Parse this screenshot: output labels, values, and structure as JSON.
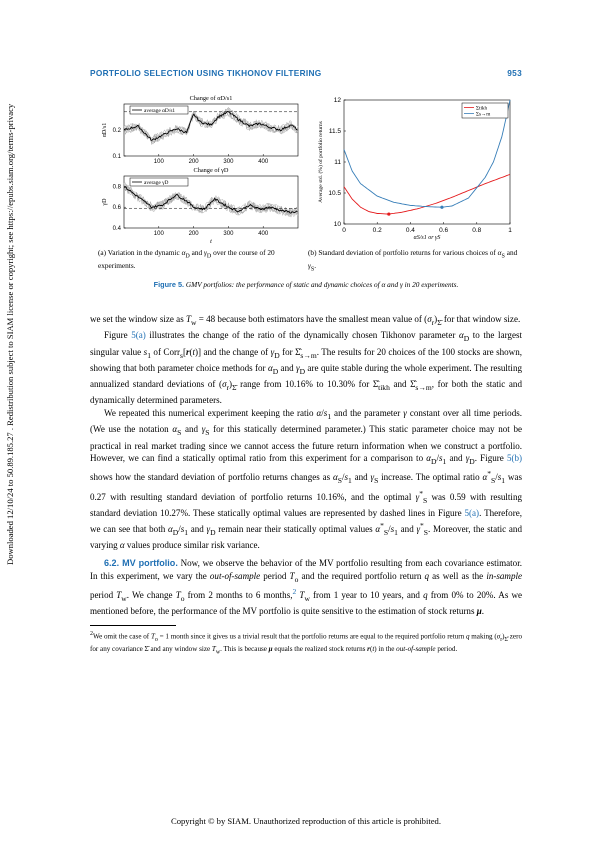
{
  "side_note": "Downloaded 12/10/24 to 50.89.185.27 . Redistribution subject to SIAM license or copyright; see https://epubs.siam.org/terms-privacy",
  "header": {
    "title": "PORTFOLIO SELECTION USING TIKHONOV FILTERING",
    "page": "953"
  },
  "figure": {
    "label": "Figure 5.",
    "caption": "GMV portfolios: the performance of static and dynamic choices of α and γ in 20 experiments.",
    "sub_a": "(a) Variation in the dynamic αD and γD over the course of 20 experiments.",
    "sub_b": "(b) Standard deviation of portfolio returns for various choices of αS and γS."
  },
  "chart_data": [
    {
      "type": "line",
      "title": "Change of αD/s1",
      "ylabel": "αD/s1",
      "xlabel": "",
      "legend": [
        "average αD/s1"
      ],
      "xlim": [
        0,
        500
      ],
      "ylim": [
        0.1,
        0.3
      ],
      "xticks": [
        "100",
        "200",
        "300",
        "400"
      ],
      "yticks": [
        "0.1",
        "0.2"
      ],
      "reference_line": 0.27,
      "series": [
        {
          "name": "average αD/s1",
          "x": [
            0,
            40,
            80,
            110,
            150,
            180,
            200,
            220,
            250,
            270,
            300,
            330,
            360,
            390,
            420,
            450,
            480,
            500
          ],
          "y": [
            0.2,
            0.215,
            0.16,
            0.18,
            0.205,
            0.19,
            0.26,
            0.23,
            0.22,
            0.25,
            0.27,
            0.24,
            0.215,
            0.225,
            0.21,
            0.2,
            0.22,
            0.2
          ]
        }
      ]
    },
    {
      "type": "line",
      "title": "Change of γD",
      "ylabel": "γD",
      "xlabel": "t",
      "legend": [
        "average γD"
      ],
      "xlim": [
        0,
        500
      ],
      "ylim": [
        0.4,
        0.9
      ],
      "xticks": [
        "100",
        "200",
        "300",
        "400"
      ],
      "yticks": [
        "0.4",
        "0.6",
        "0.8"
      ],
      "reference_line": 0.59,
      "series": [
        {
          "name": "average γD",
          "x": [
            0,
            40,
            80,
            110,
            150,
            180,
            200,
            230,
            260,
            300,
            330,
            360,
            390,
            420,
            450,
            480,
            500
          ],
          "y": [
            0.8,
            0.7,
            0.6,
            0.62,
            0.72,
            0.66,
            0.6,
            0.58,
            0.68,
            0.6,
            0.56,
            0.62,
            0.58,
            0.6,
            0.57,
            0.55,
            0.56
          ]
        }
      ]
    },
    {
      "type": "line",
      "title": "",
      "xlabel": "αS/s1 or γS",
      "ylabel": "Average std. (%) of portfolio returns",
      "xlim": [
        0,
        1
      ],
      "ylim": [
        10,
        12
      ],
      "xticks": [
        "0",
        "0.2",
        "0.4",
        "0.6",
        "0.8",
        "1"
      ],
      "yticks": [
        "10",
        "10.5",
        "11",
        "11.5",
        "12"
      ],
      "legend_position": "top-right",
      "series": [
        {
          "name": "Σtikh",
          "color": "#e41a1c",
          "x": [
            0,
            0.05,
            0.1,
            0.15,
            0.2,
            0.27,
            0.35,
            0.45,
            0.55,
            0.65,
            0.75,
            0.85,
            0.95,
            1.0
          ],
          "y": [
            10.6,
            10.4,
            10.27,
            10.2,
            10.17,
            10.16,
            10.19,
            10.25,
            10.33,
            10.43,
            10.54,
            10.65,
            10.75,
            10.8
          ]
        },
        {
          "name": "Σs→m",
          "color": "#377eb8",
          "x": [
            0,
            0.05,
            0.1,
            0.2,
            0.3,
            0.4,
            0.5,
            0.59,
            0.65,
            0.75,
            0.85,
            0.9,
            0.95,
            0.98,
            1.0
          ],
          "y": [
            11.2,
            10.85,
            10.65,
            10.45,
            10.35,
            10.3,
            10.28,
            10.27,
            10.29,
            10.42,
            10.75,
            11.0,
            11.4,
            11.75,
            12.0
          ]
        }
      ],
      "markers": [
        {
          "x": 0.27,
          "y": 10.16
        },
        {
          "x": 0.59,
          "y": 10.27
        }
      ]
    }
  ],
  "body": {
    "p1": "we set the window size as Tw = 48 because both estimators have the smallest mean value of (σr)Σ for that window size.",
    "p2": "Figure 5(a) illustrates the change of the ratio of the dynamically chosen Tikhonov parameter αD to the largest singular value s1 of Corrs[r(t)] and the change of γD for Σs→m. The results for 20 choices of the 100 stocks are shown, showing that both parameter choice methods for αD and γD are quite stable during the whole experiment. The resulting annualized standard deviations of (σr)Σ range from 10.16% to 10.30% for Σtikh and Σs→m, for both the static and dynamically determined parameters.",
    "p3": "We repeated this numerical experiment keeping the ratio α/s1 and the parameter γ constant over all time periods. (We use the notation αS and γS for this statically determined parameter.) This static parameter choice may not be practical in real market trading since we cannot access the future return information when we construct a portfolio. However, we can find a statically optimal ratio from this experiment for a comparison to αD/s1 and γD. Figure 5(b) shows how the standard deviation of portfolio returns changes as αS/s1 and γS increase. The optimal ratio α*S/s1 was 0.27 with resulting standard deviation of portfolio returns 10.16%, and the optimal γ*S was 0.59 with resulting standard deviation 10.27%. These statically optimal values are represented by dashed lines in Figure 5(a). Therefore, we can see that both αD/s1 and γD remain near their statically optimal values α*S/s1 and γ*S. Moreover, the static and varying α values produce similar risk variance.",
    "sec_num": "6.2.",
    "sec_title": "MV portfolio.",
    "p4": "Now, we observe the behavior of the MV portfolio resulting from each covariance estimator. In this experiment, we vary the out-of-sample period To and the required portfolio return q as well as the in-sample period Tw. We change To from 2 months to 6 months,2 Tw from 1 year to 10 years, and q from 0% to 20%. As we mentioned before, the performance of the MV portfolio is quite sensitive to the estimation of stock returns μ."
  },
  "footnote": "2We omit the case of To = 1 month since it gives us a trivial result that the portfolio returns are equal to the required portfolio return q making (σr)Σ zero for any covariance Σ and any window size Tw. This is because μ equals the realized stock returns r(t) in the out-of-sample period.",
  "copyright": "Copyright © by SIAM. Unauthorized reproduction of this article is prohibited."
}
